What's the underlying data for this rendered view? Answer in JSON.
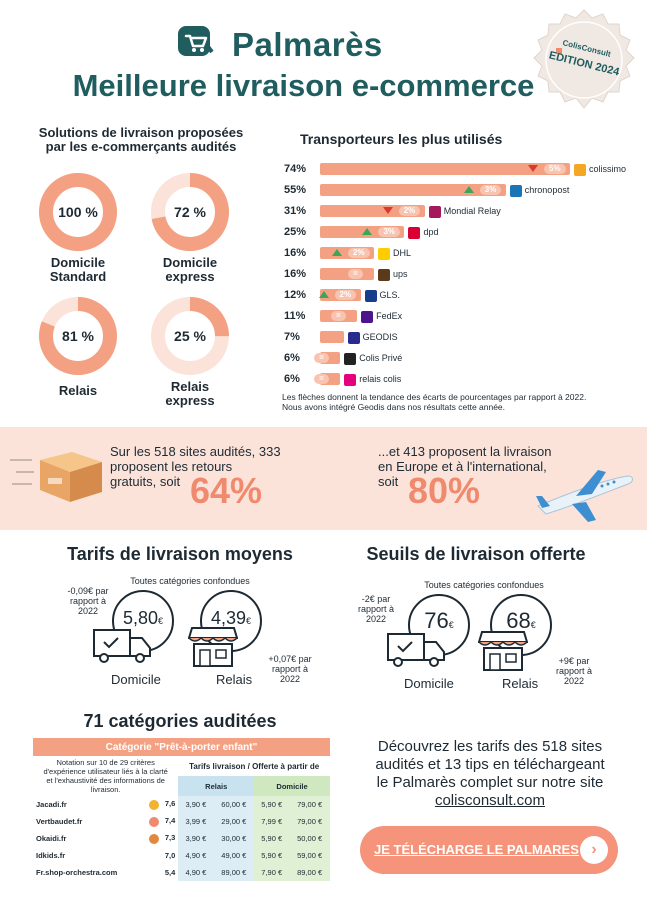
{
  "header": {
    "title": "Palmarès",
    "subtitle": "Meilleure livraison e-commerce",
    "seal_brand": "ColisConsult",
    "seal_edition": "EDITION 2024"
  },
  "solutions": {
    "heading_line1": "Solutions de livraison proposées",
    "heading_line2": "par les e-commerçants audités",
    "items": [
      {
        "pct": "100 %",
        "value": 100,
        "label1": "Domicile",
        "label2": "Standard"
      },
      {
        "pct": "72 %",
        "value": 72,
        "label1": "Domicile",
        "label2": "express"
      },
      {
        "pct": "81 %",
        "value": 81,
        "label1": "Relais",
        "label2": ""
      },
      {
        "pct": "25 %",
        "value": 25,
        "label1": "Relais",
        "label2": "express"
      }
    ]
  },
  "carriers": {
    "heading": "Transporteurs les plus utilisés",
    "rows": [
      {
        "pct": "74%",
        "value": 74,
        "delta": "5%",
        "trend": "down",
        "name": "colissimo",
        "color": "#f5a623"
      },
      {
        "pct": "55%",
        "value": 55,
        "delta": "3%",
        "trend": "up",
        "name": "chronopost",
        "color": "#1b74b8"
      },
      {
        "pct": "31%",
        "value": 31,
        "delta": "2%",
        "trend": "down",
        "name": "Mondial Relay",
        "color": "#a3195b"
      },
      {
        "pct": "25%",
        "value": 25,
        "delta": "3%",
        "trend": "up",
        "name": "dpd",
        "color": "#dc0032"
      },
      {
        "pct": "16%",
        "value": 16,
        "delta": "2%",
        "trend": "up",
        "name": "DHL",
        "color": "#ffcc00"
      },
      {
        "pct": "16%",
        "value": 16,
        "delta": "=",
        "trend": "equal",
        "name": "ups",
        "color": "#5a3a1a"
      },
      {
        "pct": "12%",
        "value": 12,
        "delta": "2%",
        "trend": "up",
        "name": "GLS.",
        "color": "#163e8c"
      },
      {
        "pct": "11%",
        "value": 11,
        "delta": "=",
        "trend": "equal",
        "name": "FedEx",
        "color": "#4d148c"
      },
      {
        "pct": "7%",
        "value": 7,
        "delta": "",
        "trend": "none",
        "name": "GEODIS",
        "color": "#2b2a8f"
      },
      {
        "pct": "6%",
        "value": 6,
        "delta": "=",
        "trend": "equal",
        "name": "Colis Privé",
        "color": "#222222"
      },
      {
        "pct": "6%",
        "value": 6,
        "delta": "=",
        "trend": "equal",
        "name": "relais colis",
        "color": "#e5007e"
      }
    ],
    "note_line1": "Les flèches donnent la tendance des écarts de pourcentages par rapport à 2022.",
    "note_line2": "Nous avons intégré Geodis dans nos résultats cette année."
  },
  "band": {
    "left_text1": "Sur les 518 sites audités, 333",
    "left_text2": "proposent les retours",
    "left_text3": "gratuits, soit",
    "left_pct": "64%",
    "right_text1": "...et 413 proposent la livraison",
    "right_text2": "en Europe et à l'international,",
    "right_text3": "soit",
    "right_pct": "80%"
  },
  "tarifs": {
    "heading": "Tarifs de livraison moyens",
    "sub": "Toutes catégories confondues",
    "domicile_price": "5,80",
    "relais_price": "4,39",
    "currency": "€",
    "domicile_note1": "-0,09€ par",
    "domicile_note2": "rapport à",
    "domicile_note3": "2022",
    "relais_note1": "+0,07€ par",
    "relais_note2": "rapport à",
    "relais_note3": "2022",
    "domicile_label": "Domicile",
    "relais_label": "Relais"
  },
  "seuils": {
    "heading": "Seuils de livraison offerte",
    "sub": "Toutes catégories confondues",
    "domicile_price": "76",
    "relais_price": "68",
    "currency": "€",
    "domicile_note1": "-2€ par",
    "domicile_note2": "rapport à",
    "domicile_note3": "2022",
    "relais_note1": "+9€ par",
    "relais_note2": "rapport à",
    "relais_note3": "2022",
    "domicile_label": "Domicile",
    "relais_label": "Relais"
  },
  "categories": {
    "heading": "71 catégories auditées",
    "table_title": "Catégorie \"Prêt-à-porter enfant\"",
    "note1": "Notation sur 10 de 29 critères",
    "note2": "d'expérience utilisateur liés à la clarté",
    "note3": "et l'exhaustivité des informations de",
    "note4": "livraison.",
    "tarifs_header": "Tarifs  livraison / Offerte à partir de",
    "relais_header": "Relais",
    "domicile_header": "Domicile",
    "rows": [
      {
        "site": "Jacadi.fr",
        "score": "7,6",
        "medal": "1",
        "r_tarif": "3,90 €",
        "r_offert": "60,00 €",
        "d_tarif": "5,90 €",
        "d_offert": "79,00 €"
      },
      {
        "site": "Vertbaudet.fr",
        "score": "7,4",
        "medal": "2",
        "r_tarif": "3,99 €",
        "r_offert": "29,00 €",
        "d_tarif": "7,99 €",
        "d_offert": "79,00 €"
      },
      {
        "site": "Okaidi.fr",
        "score": "7,3",
        "medal": "3",
        "r_tarif": "3,90 €",
        "r_offert": "30,00 €",
        "d_tarif": "5,90 €",
        "d_offert": "50,00 €"
      },
      {
        "site": "Idkids.fr",
        "score": "7,0",
        "medal": "",
        "r_tarif": "4,90 €",
        "r_offert": "49,00 €",
        "d_tarif": "5,90 €",
        "d_offert": "59,00 €"
      },
      {
        "site": "Fr.shop-orchestra.com",
        "score": "5,4",
        "medal": "",
        "r_tarif": "4,90 €",
        "r_offert": "89,00 €",
        "d_tarif": "7,90 €",
        "d_offert": "89,00 €"
      }
    ]
  },
  "cta": {
    "line1": "Découvrez les tarifs des 518 sites",
    "line2": "audités et 13 tips en téléchargeant",
    "line3": "le Palmarès complet sur notre site",
    "link": "colisconsult.com",
    "button": "JE TÉLÉCHARGE LE PALMARES"
  },
  "colors": {
    "teal": "#1f5d5f",
    "salmon": "#f08a6e",
    "band": "#fbe3da"
  }
}
